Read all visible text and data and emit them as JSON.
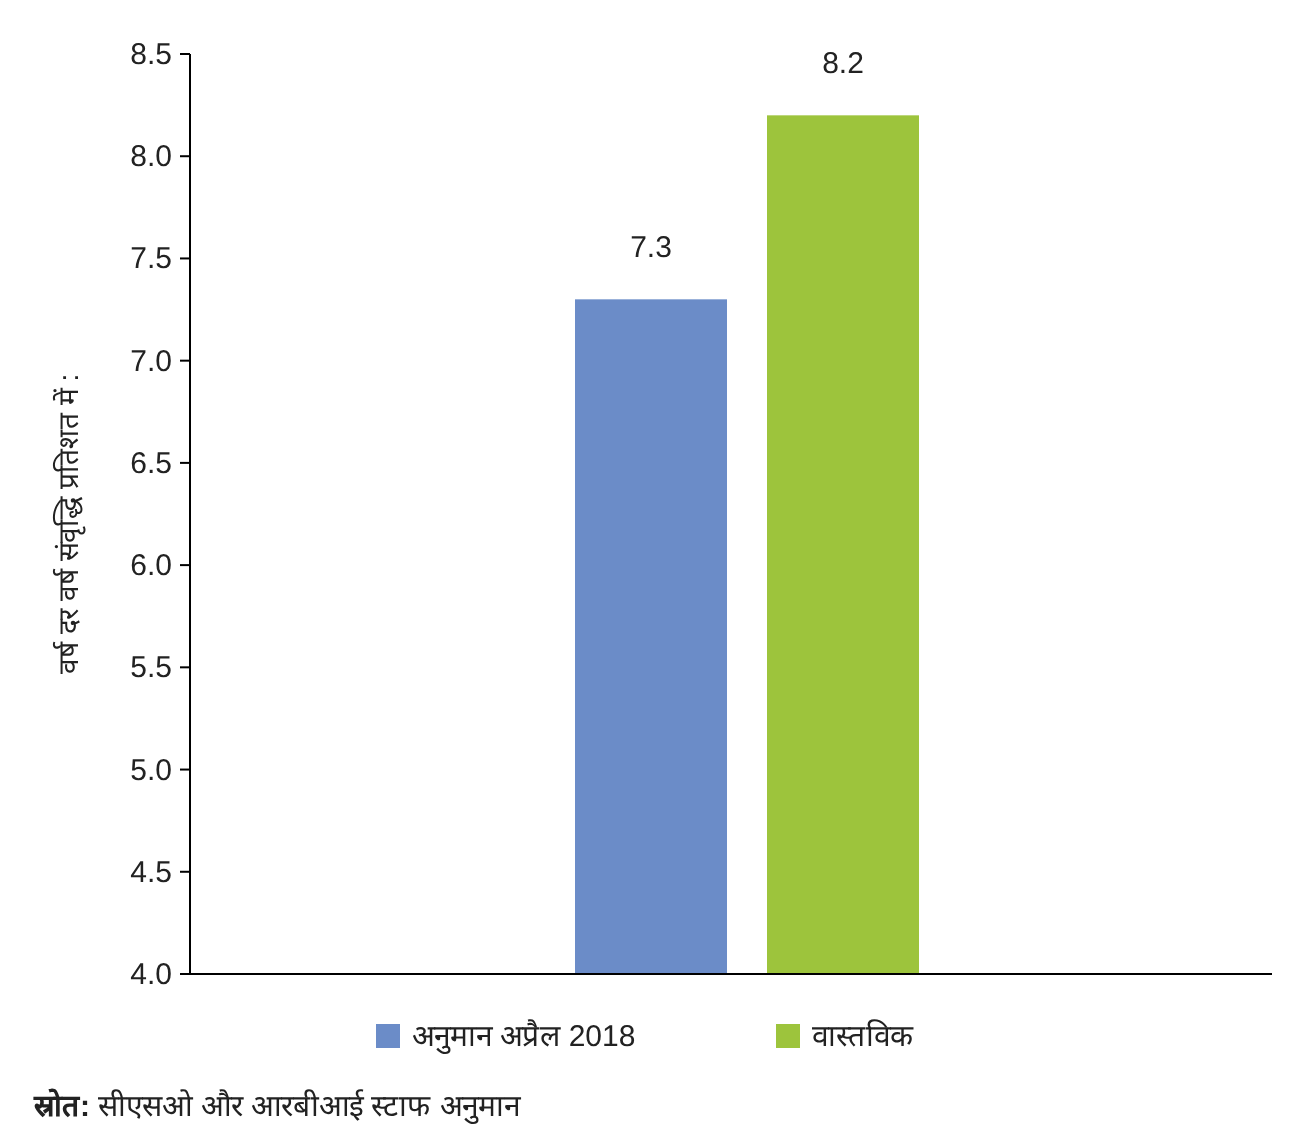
{
  "chart_data": {
    "type": "bar",
    "ylabel": "वर्ष दर वर्ष संवृद्धि प्रतिशत में :",
    "categories": [
      null
    ],
    "series": [
      {
        "name": "अनुमान अप्रैल 2018",
        "color": "#6b8cc8",
        "values": [
          7.3
        ]
      },
      {
        "name": "वास्तविक",
        "color": "#9dc43c",
        "values": [
          8.2
        ]
      }
    ],
    "ylim": [
      4.0,
      8.5
    ],
    "yticks": [
      {
        "value": 4,
        "label": "4.0"
      },
      {
        "value": 4.5,
        "label": "4.5"
      },
      {
        "value": 5,
        "label": "5.0"
      },
      {
        "value": 5.5,
        "label": "5.5"
      },
      {
        "value": 6,
        "label": "6.0"
      },
      {
        "value": 6.5,
        "label": "6.5"
      },
      {
        "value": 7,
        "label": "7.0"
      },
      {
        "value": 7.5,
        "label": "7.5"
      },
      {
        "value": 8,
        "label": "8.0"
      },
      {
        "value": 8.5,
        "label": "8.5"
      }
    ],
    "data_labels": true,
    "legend": "bottom",
    "grid": false,
    "annotations": [
      "स्रोत: सीएसओ और आरबीआई स्टाफ अनुमान"
    ]
  }
}
